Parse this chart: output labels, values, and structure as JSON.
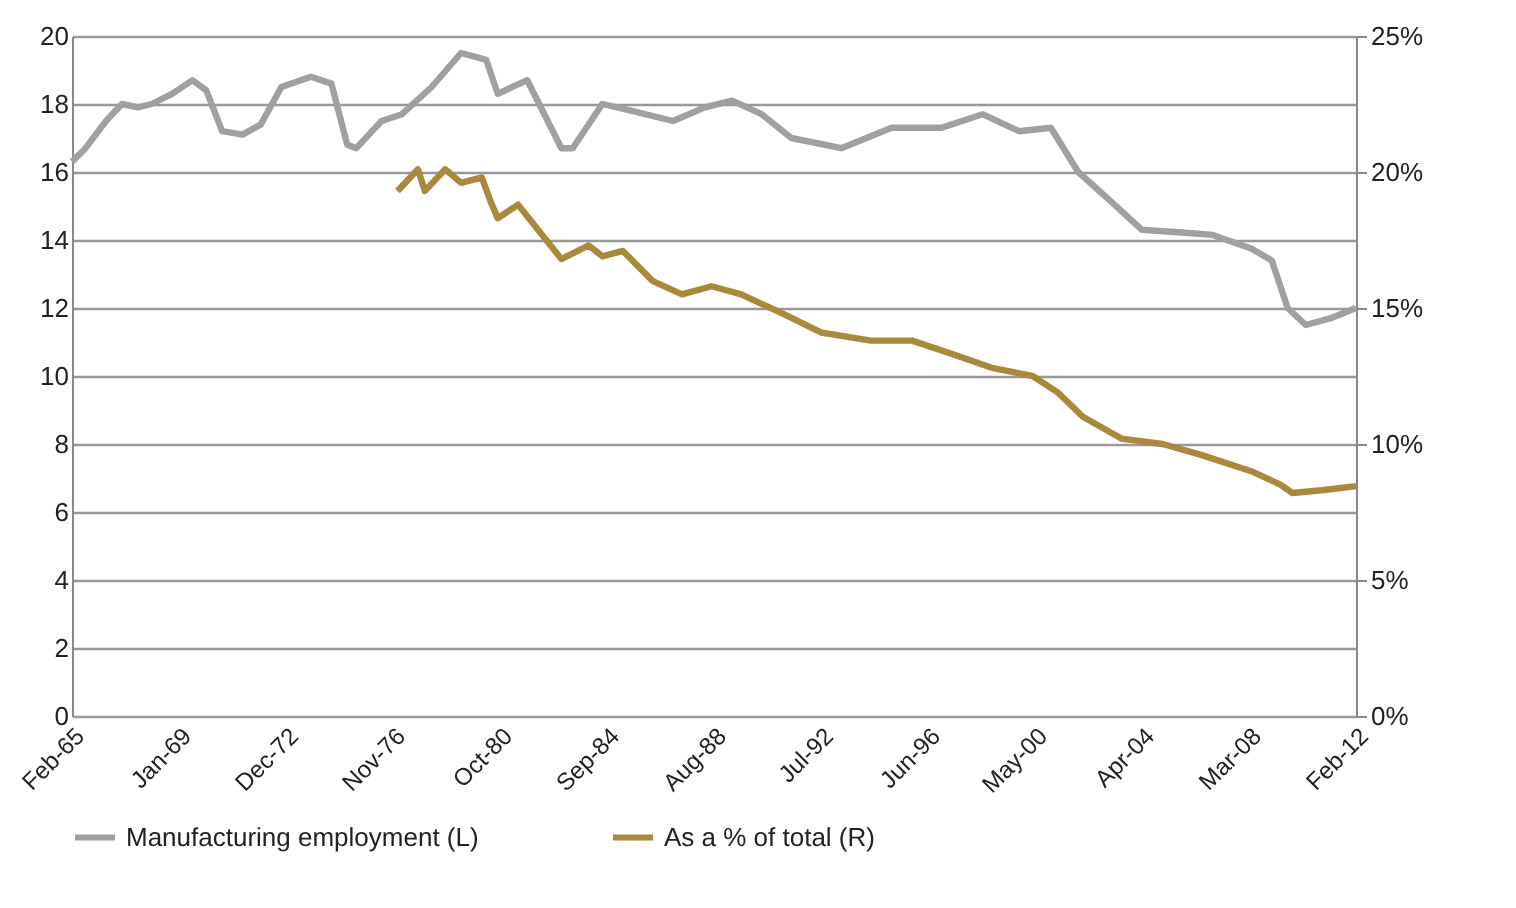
{
  "chart_data": {
    "type": "line",
    "xlim": [
      "1965-02",
      "2012-02"
    ],
    "xticks": [
      {
        "value": "1965-02",
        "label": "Feb-65"
      },
      {
        "value": "1969-01",
        "label": "Jan-69"
      },
      {
        "value": "1972-12",
        "label": "Dec-72"
      },
      {
        "value": "1976-11",
        "label": "Nov-76"
      },
      {
        "value": "1980-10",
        "label": "Oct-80"
      },
      {
        "value": "1984-09",
        "label": "Sep-84"
      },
      {
        "value": "1988-08",
        "label": "Aug-88"
      },
      {
        "value": "1992-07",
        "label": "Jul-92"
      },
      {
        "value": "1996-06",
        "label": "Jun-96"
      },
      {
        "value": "2000-05",
        "label": "May-00"
      },
      {
        "value": "2004-04",
        "label": "Apr-04"
      },
      {
        "value": "2008-03",
        "label": "Mar-08"
      },
      {
        "value": "2012-02",
        "label": "Feb-12"
      }
    ],
    "ylim": [
      0,
      20
    ],
    "yticks": [
      0,
      2,
      4,
      6,
      8,
      10,
      12,
      14,
      16,
      18,
      20
    ],
    "y2lim": [
      0,
      25
    ],
    "y2ticks": [
      {
        "value": 0,
        "label": "0%"
      },
      {
        "value": 5,
        "label": "5%"
      },
      {
        "value": 10,
        "label": "10%"
      },
      {
        "value": 15,
        "label": "15%"
      },
      {
        "value": 20,
        "label": "20%"
      },
      {
        "value": 25,
        "label": "25%"
      }
    ],
    "grid": "y",
    "legend": "bottom",
    "marker": "none",
    "line_style": "solid",
    "series": [
      {
        "name": "Manufacturing employment (L)",
        "color": "#a0a0a0",
        "x": [
          "1965-02",
          "1965-08",
          "1966-05",
          "1966-12",
          "1967-07",
          "1968-01",
          "1968-10",
          "1969-07",
          "1970-01",
          "1970-08",
          "1971-05",
          "1972-01",
          "1972-10",
          "1973-11",
          "1974-08",
          "1975-03",
          "1975-07",
          "1976-06",
          "1977-03",
          "1978-04",
          "1979-05",
          "1980-04",
          "1980-09",
          "1981-10",
          "1983-01",
          "1983-06",
          "1984-07",
          "1985-08",
          "1987-02",
          "1988-04",
          "1989-04",
          "1990-05",
          "1991-06",
          "1993-04",
          "1995-02",
          "1996-12",
          "1998-06",
          "1999-10",
          "2000-12",
          "2001-12",
          "2003-03",
          "2004-04",
          "2006-02",
          "2006-11",
          "2008-04",
          "2009-01",
          "2009-08",
          "2010-04",
          "2011-03",
          "2012-02"
        ],
        "values": [
          16.3,
          16.7,
          17.5,
          18.0,
          17.9,
          18.0,
          18.3,
          18.7,
          18.4,
          17.2,
          17.1,
          17.4,
          18.5,
          18.8,
          18.6,
          16.8,
          16.7,
          17.5,
          17.7,
          18.5,
          19.5,
          19.3,
          18.3,
          18.7,
          16.7,
          16.7,
          18.0,
          17.8,
          17.5,
          17.9,
          18.1,
          17.7,
          17.0,
          16.7,
          17.3,
          17.3,
          17.7,
          17.2,
          17.3,
          16.0,
          15.1,
          14.3,
          14.2,
          14.15,
          13.75,
          13.4,
          12.0,
          11.5,
          11.7,
          12.0
        ]
      },
      {
        "name": "As a % of total (R)",
        "color": "#a98a3c",
        "axis": "y2",
        "x": [
          "1977-01",
          "1977-10",
          "1978-01",
          "1978-10",
          "1979-05",
          "1980-02",
          "1980-06",
          "1980-09",
          "1981-06",
          "1983-01",
          "1984-01",
          "1984-07",
          "1985-04",
          "1986-05",
          "1987-06",
          "1988-07",
          "1989-08",
          "1991-02",
          "1992-07",
          "1994-05",
          "1995-11",
          "1997-05",
          "1998-10",
          "2000-04",
          "2001-03",
          "2002-02",
          "2003-07",
          "2005-01",
          "2006-06",
          "2008-04",
          "2009-05",
          "2009-10",
          "2010-11",
          "2012-02"
        ],
        "values": [
          19.3,
          20.1,
          19.3,
          20.1,
          19.6,
          19.8,
          18.9,
          18.3,
          18.8,
          16.8,
          17.3,
          16.9,
          17.1,
          16.0,
          15.5,
          15.8,
          15.5,
          14.8,
          14.1,
          13.8,
          13.8,
          13.3,
          12.8,
          12.5,
          11.9,
          11.0,
          10.2,
          10.0,
          9.6,
          9.0,
          8.5,
          8.2,
          8.3,
          8.45
        ]
      }
    ]
  }
}
